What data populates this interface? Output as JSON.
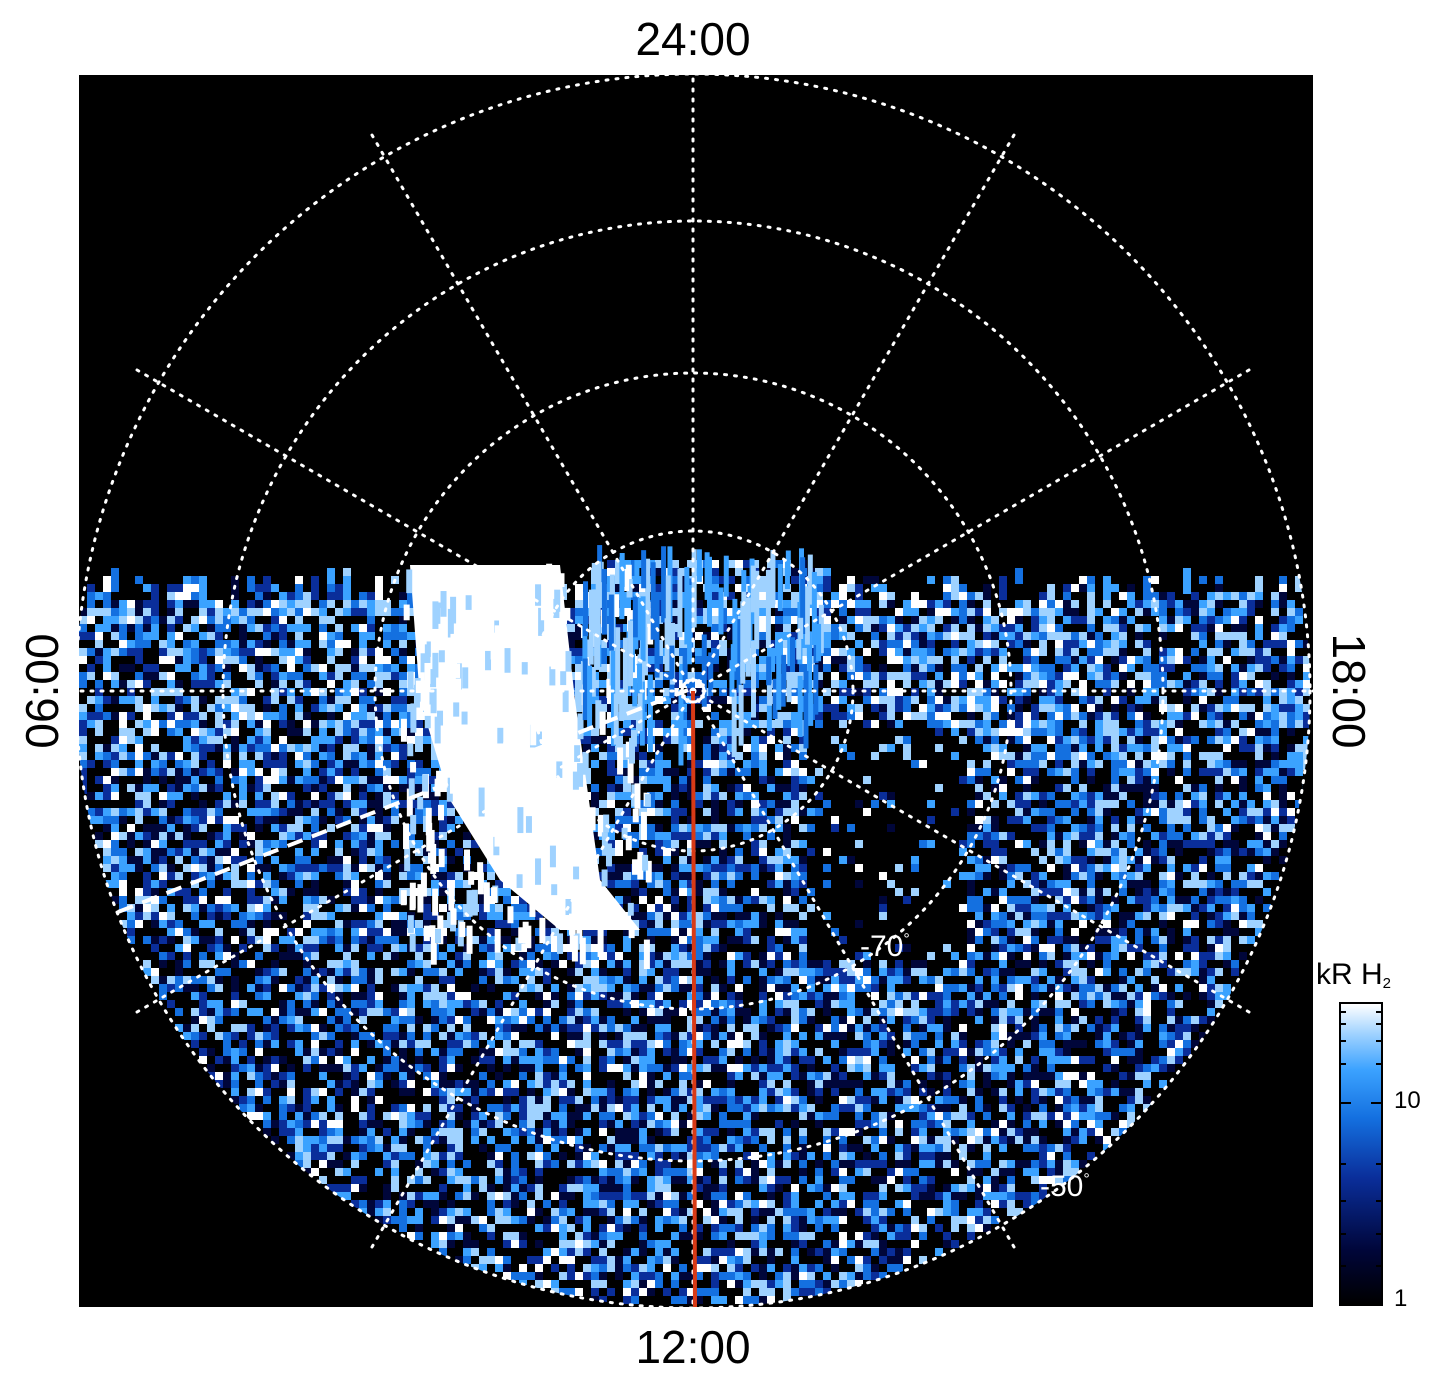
{
  "image": {
    "local_time_labels": {
      "top": "24:00",
      "bottom": "12:00",
      "left": "06:00",
      "right": "18:00"
    },
    "latitude_labels": [
      {
        "text": "-70",
        "unit": "°"
      },
      {
        "text": "-50",
        "unit": "°"
      }
    ],
    "colorbar": {
      "title_main": "kR H",
      "title_sub": "2",
      "tick_labels": [
        "10",
        "1"
      ],
      "scale": "log",
      "colors": [
        "#000000",
        "#00063a",
        "#0a2e9a",
        "#1470e0",
        "#3ba2ff",
        "#9fd2ff",
        "#ffffff"
      ]
    },
    "colors": {
      "background": "#000000",
      "grid": "#ffffff",
      "meridian_line": "#d83a16"
    }
  }
}
